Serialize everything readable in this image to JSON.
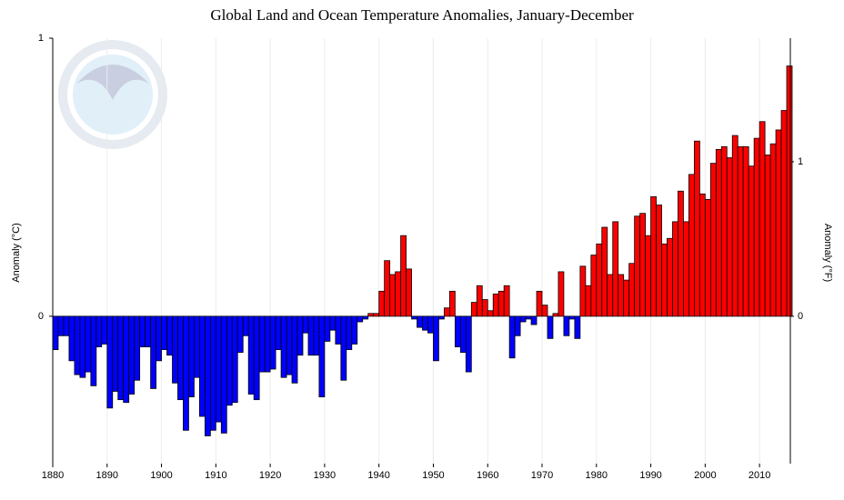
{
  "chart_data": {
    "type": "bar",
    "title": "Global Land and Ocean Temperature Anomalies, January-December",
    "y_label": "Anomaly (°C)",
    "y2_label": "Anomaly (°F)",
    "x": [
      1880,
      1881,
      1882,
      1883,
      1884,
      1885,
      1886,
      1887,
      1888,
      1889,
      1890,
      1891,
      1892,
      1893,
      1894,
      1895,
      1896,
      1897,
      1898,
      1899,
      1900,
      1901,
      1902,
      1903,
      1904,
      1905,
      1906,
      1907,
      1908,
      1909,
      1910,
      1911,
      1912,
      1913,
      1914,
      1915,
      1916,
      1917,
      1918,
      1919,
      1920,
      1921,
      1922,
      1923,
      1924,
      1925,
      1926,
      1927,
      1928,
      1929,
      1930,
      1931,
      1932,
      1933,
      1934,
      1935,
      1936,
      1937,
      1938,
      1939,
      1940,
      1941,
      1942,
      1943,
      1944,
      1945,
      1946,
      1947,
      1948,
      1949,
      1950,
      1951,
      1952,
      1953,
      1954,
      1955,
      1956,
      1957,
      1958,
      1959,
      1960,
      1961,
      1962,
      1963,
      1964,
      1965,
      1966,
      1967,
      1968,
      1969,
      1970,
      1971,
      1972,
      1973,
      1974,
      1975,
      1976,
      1977,
      1978,
      1979,
      1980,
      1981,
      1982,
      1983,
      1984,
      1985,
      1986,
      1987,
      1988,
      1989,
      1990,
      1991,
      1992,
      1993,
      1994,
      1995,
      1996,
      1997,
      1998,
      1999,
      2000,
      2001,
      2002,
      2003,
      2004,
      2005,
      2006,
      2007,
      2008,
      2009,
      2010,
      2011,
      2012,
      2013,
      2014,
      2015
    ],
    "values": [
      -0.12,
      -0.07,
      -0.07,
      -0.16,
      -0.21,
      -0.22,
      -0.2,
      -0.25,
      -0.11,
      -0.1,
      -0.33,
      -0.27,
      -0.3,
      -0.31,
      -0.28,
      -0.23,
      -0.11,
      -0.11,
      -0.26,
      -0.16,
      -0.12,
      -0.14,
      -0.24,
      -0.3,
      -0.41,
      -0.29,
      -0.22,
      -0.36,
      -0.43,
      -0.41,
      -0.38,
      -0.42,
      -0.32,
      -0.31,
      -0.13,
      -0.07,
      -0.28,
      -0.3,
      -0.2,
      -0.2,
      -0.19,
      -0.12,
      -0.22,
      -0.21,
      -0.24,
      -0.14,
      -0.06,
      -0.14,
      -0.14,
      -0.29,
      -0.09,
      -0.05,
      -0.1,
      -0.23,
      -0.12,
      -0.1,
      -0.02,
      -0.01,
      0.01,
      0.01,
      0.09,
      0.2,
      0.15,
      0.16,
      0.29,
      0.17,
      -0.01,
      -0.04,
      -0.05,
      -0.06,
      -0.16,
      -0.01,
      0.03,
      0.09,
      -0.11,
      -0.13,
      -0.2,
      0.05,
      0.11,
      0.06,
      0.02,
      0.08,
      0.09,
      0.11,
      -0.15,
      -0.07,
      -0.02,
      -0.01,
      -0.03,
      0.09,
      0.04,
      -0.08,
      0.01,
      0.16,
      -0.07,
      -0.01,
      -0.08,
      0.18,
      0.11,
      0.22,
      0.26,
      0.32,
      0.15,
      0.34,
      0.15,
      0.13,
      0.19,
      0.36,
      0.37,
      0.29,
      0.43,
      0.4,
      0.26,
      0.28,
      0.34,
      0.45,
      0.34,
      0.51,
      0.63,
      0.44,
      0.42,
      0.55,
      0.6,
      0.61,
      0.57,
      0.65,
      0.61,
      0.61,
      0.54,
      0.64,
      0.7,
      0.58,
      0.62,
      0.67,
      0.74,
      0.9
    ],
    "positive_color": "#ff0000",
    "negative_color": "#0000ff",
    "xlim": [
      1880,
      2016
    ],
    "xticks": [
      1880,
      1890,
      1900,
      1910,
      1920,
      1930,
      1940,
      1950,
      1960,
      1970,
      1980,
      1990,
      2000,
      2010
    ],
    "ylim": [
      -0.53,
      1
    ],
    "yticks": [
      0,
      1
    ],
    "y2lim": [
      -0.954,
      1.8
    ],
    "y2ticks": [
      0,
      1
    ],
    "grid": true
  }
}
